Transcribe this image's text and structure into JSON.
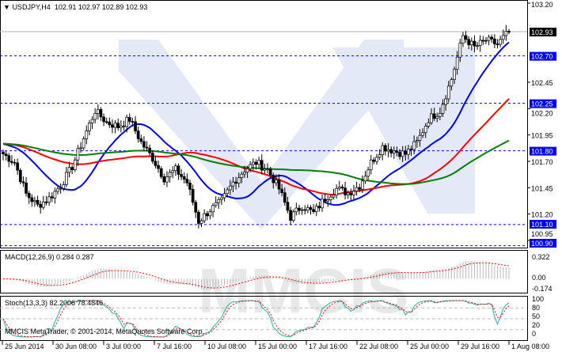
{
  "header": {
    "symbol": "USDJPY,H4",
    "ohlc": "102.91 102.97 102.89 102.93"
  },
  "macd": {
    "label": "MACD(12,26,9) 0.284 0.287",
    "axis": [
      "0.322",
      "0.00",
      "-0.174"
    ]
  },
  "stoch": {
    "label": "Stoch(13,3,3) 82.2006 78.4846",
    "axis": [
      "100",
      "80",
      "50",
      "20",
      "0"
    ]
  },
  "copyright": "MMCIS MetaTrader, © 2001-2014, MetaQuotes Software Corp.",
  "watermark": "MMCIS",
  "chart_data": {
    "type": "candlestick",
    "price_axis": [
      "103.20",
      "102.45",
      "102.20",
      "101.95",
      "101.70",
      "101.45",
      "101.20",
      "100.95"
    ],
    "ylim": [
      100.9,
      103.2
    ],
    "time_axis": [
      "25 Jun 2014",
      "30 Jun 08:00",
      "3 Jul 00:00",
      "7 Jul 16:00",
      "10 Jul 08:00",
      "15 Jul 00:00",
      "17 Jul 16:00",
      "22 Jul 08:00",
      "25 Jul 00:00",
      "29 Jul 16:00",
      "1 Aug 08:00"
    ],
    "closes_approx": [
      101.77,
      101.69,
      101.39,
      101.28,
      101.35,
      101.47,
      101.65,
      101.92,
      102.18,
      102.07,
      102.03,
      102.1,
      101.88,
      101.73,
      101.54,
      101.62,
      101.5,
      101.13,
      101.24,
      101.32,
      101.5,
      101.62,
      101.69,
      101.62,
      101.44,
      101.17,
      101.28,
      101.21,
      101.35,
      101.44,
      101.4,
      101.47,
      101.69,
      101.84,
      101.8,
      101.77,
      101.88,
      102.1,
      102.18,
      102.48,
      102.89,
      102.78,
      102.85,
      102.81,
      102.93
    ],
    "current_price": {
      "value": "102.93",
      "color": "#000000"
    },
    "levels": [
      {
        "value": "102.70",
        "color": "#0000ff"
      },
      {
        "value": "102.25",
        "color": "#0000ff"
      },
      {
        "value": "101.80",
        "color": "#0000ff"
      },
      {
        "value": "101.10",
        "color": "#0000ff"
      },
      {
        "value": "100.90",
        "color": "#0000ff"
      }
    ],
    "moving_averages": [
      {
        "color": "#0000ff"
      },
      {
        "color": "#ff0000"
      },
      {
        "color": "#008000"
      }
    ],
    "grid": false
  }
}
